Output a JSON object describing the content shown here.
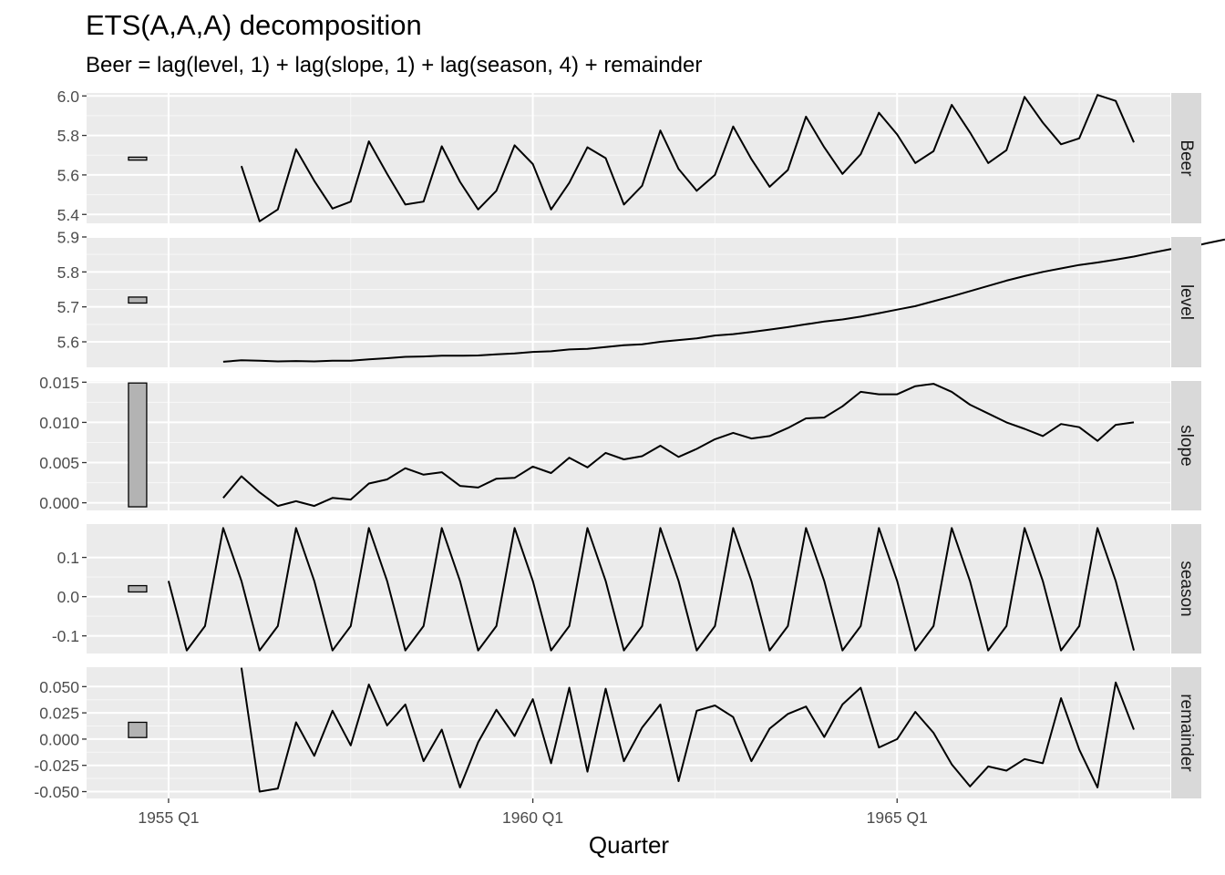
{
  "title": "ETS(A,A,A) decomposition",
  "subtitle": "Beer = lag(level, 1) + lag(slope, 1) + lag(season, 4) + remainder",
  "chart_data": {
    "type": "line",
    "xlabel": "Quarter",
    "x_start": "1955 Q1",
    "x_ticks": [
      "1955 Q1",
      "1960 Q1",
      "1965 Q1"
    ],
    "x_domain_quarters_from_1955Q1": [
      -4.5,
      55
    ],
    "panels": [
      {
        "name": "Beer",
        "yticks": [
          5.4,
          5.6,
          5.8,
          6.0
        ],
        "tick_labels": [
          "5.4",
          "5.6",
          "5.8",
          "6.0"
        ],
        "ylim": [
          5.355,
          6.015
        ],
        "bar": [
          5.675,
          5.69
        ],
        "start_q": 4,
        "values": [
          5.645,
          5.365,
          5.425,
          5.73,
          5.57,
          5.43,
          5.465,
          5.77,
          5.605,
          5.45,
          5.465,
          5.745,
          5.565,
          5.425,
          5.52,
          5.75,
          5.655,
          5.425,
          5.56,
          5.74,
          5.685,
          5.45,
          5.545,
          5.825,
          5.63,
          5.52,
          5.6,
          5.845,
          5.68,
          5.54,
          5.625,
          5.895,
          5.74,
          5.605,
          5.705,
          5.915,
          5.805,
          5.66,
          5.72,
          5.955,
          5.815,
          5.66,
          5.725,
          5.995,
          5.865,
          5.755,
          5.785,
          6.005,
          5.975,
          5.765
        ]
      },
      {
        "name": "level",
        "yticks": [
          5.6,
          5.7,
          5.8,
          5.9
        ],
        "tick_labels": [
          "5.6",
          "5.7",
          "5.8",
          "5.9"
        ],
        "ylim": [
          5.527,
          5.9
        ],
        "bar": [
          5.711,
          5.728
        ],
        "start_q": 3,
        "values": [
          5.543,
          5.547,
          5.546,
          5.544,
          5.545,
          5.544,
          5.546,
          5.546,
          5.55,
          5.553,
          5.557,
          5.558,
          5.56,
          5.56,
          5.561,
          5.564,
          5.567,
          5.571,
          5.573,
          5.578,
          5.58,
          5.585,
          5.59,
          5.593,
          5.6,
          5.605,
          5.61,
          5.618,
          5.622,
          5.628,
          5.635,
          5.642,
          5.65,
          5.658,
          5.664,
          5.672,
          5.682,
          5.692,
          5.702,
          5.716,
          5.73,
          5.745,
          5.76,
          5.775,
          5.788,
          5.8,
          5.81,
          5.82,
          5.827,
          5.835,
          5.844,
          5.855,
          5.865,
          5.87,
          5.882,
          5.893
        ]
      },
      {
        "name": "slope",
        "yticks": [
          0.0,
          0.005,
          0.01,
          0.015
        ],
        "tick_labels": [
          "0.000",
          "0.005",
          "0.010",
          "0.015"
        ],
        "ylim": [
          -0.00095,
          0.01515
        ],
        "bar": [
          -0.0005,
          0.0149
        ],
        "start_q": 3,
        "values": [
          0.0006,
          0.0033,
          0.0013,
          -0.0004,
          0.0002,
          -0.0004,
          0.0006,
          0.0004,
          0.0024,
          0.0029,
          0.0043,
          0.0035,
          0.0038,
          0.0021,
          0.0019,
          0.003,
          0.0031,
          0.0045,
          0.0037,
          0.0056,
          0.0044,
          0.0062,
          0.0054,
          0.0058,
          0.0071,
          0.0057,
          0.0067,
          0.0079,
          0.0087,
          0.008,
          0.0083,
          0.0093,
          0.0105,
          0.0106,
          0.012,
          0.0138,
          0.0135,
          0.0135,
          0.0145,
          0.0148,
          0.0138,
          0.0122,
          0.0111,
          0.01,
          0.0092,
          0.0083,
          0.0098,
          0.0094,
          0.0077,
          0.0097,
          0.01
        ]
      },
      {
        "name": "season",
        "yticks": [
          -0.1,
          0.0,
          0.1
        ],
        "tick_labels": [
          "-0.1",
          "0.0",
          "0.1"
        ],
        "ylim": [
          -0.145,
          0.185
        ],
        "bar": [
          0.012,
          0.028
        ],
        "start_q": 0,
        "values": [
          0.04,
          -0.137,
          -0.075,
          0.175,
          0.04,
          -0.137,
          -0.075,
          0.175,
          0.04,
          -0.137,
          -0.075,
          0.175,
          0.04,
          -0.137,
          -0.075,
          0.175,
          0.04,
          -0.137,
          -0.075,
          0.175,
          0.04,
          -0.137,
          -0.075,
          0.175,
          0.04,
          -0.137,
          -0.075,
          0.175,
          0.04,
          -0.137,
          -0.075,
          0.175,
          0.04,
          -0.137,
          -0.075,
          0.175,
          0.04,
          -0.137,
          -0.075,
          0.175,
          0.04,
          -0.137,
          -0.075,
          0.175,
          0.04,
          -0.137,
          -0.075,
          0.175,
          0.04,
          -0.137,
          -0.075,
          0.175,
          0.04,
          -0.137
        ]
      },
      {
        "name": "remainder",
        "yticks": [
          -0.05,
          -0.025,
          0.0,
          0.025,
          0.05
        ],
        "tick_labels": [
          "-0.050",
          "-0.025",
          "0.000",
          "0.025",
          "0.050"
        ],
        "ylim": [
          -0.0565,
          0.0685
        ],
        "bar": [
          0.0015,
          0.016
        ],
        "start_q": 4,
        "values": [
          0.068,
          -0.05,
          -0.047,
          0.016,
          -0.016,
          0.027,
          -0.006,
          0.052,
          0.013,
          0.033,
          -0.021,
          0.009,
          -0.046,
          -0.003,
          0.028,
          0.003,
          0.038,
          -0.023,
          0.049,
          -0.031,
          0.048,
          -0.021,
          0.011,
          0.033,
          -0.04,
          0.027,
          0.032,
          0.021,
          -0.021,
          0.01,
          0.024,
          0.031,
          0.002,
          0.033,
          0.049,
          -0.008,
          0.0,
          0.026,
          0.006,
          -0.024,
          -0.045,
          -0.026,
          -0.03,
          -0.019,
          -0.023,
          0.039,
          -0.01,
          -0.046,
          0.054,
          0.009
        ]
      }
    ]
  }
}
